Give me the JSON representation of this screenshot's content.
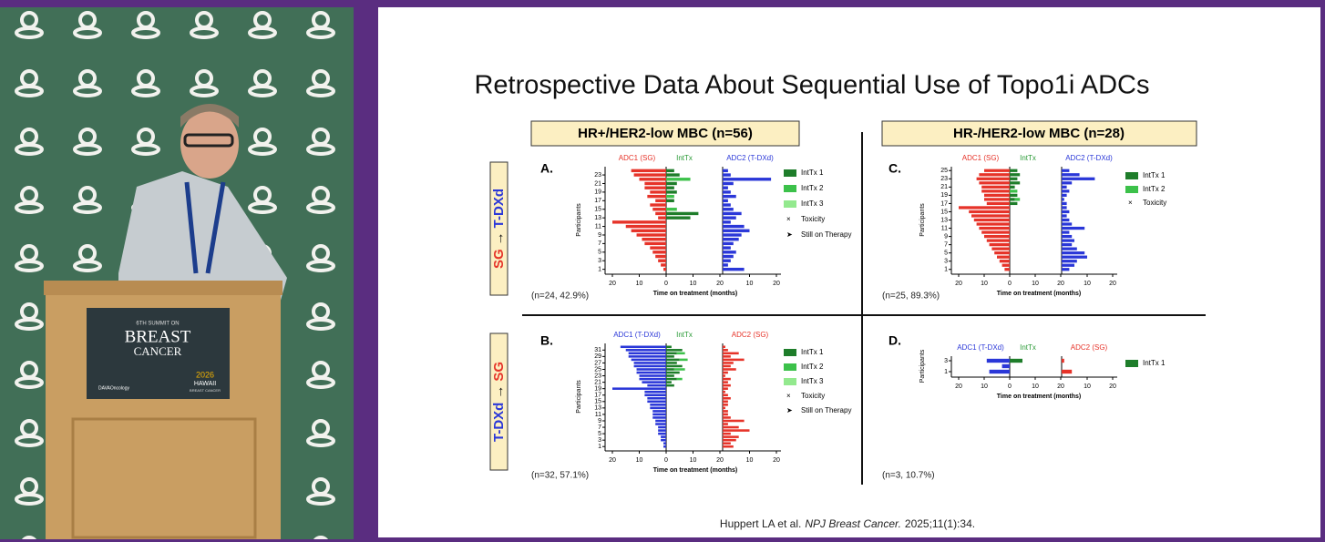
{
  "video": {
    "podium": {
      "summit": "6TH SUMMIT ON",
      "line1": "BREAST",
      "line2": "CANCER",
      "sponsor": "DAVAOncology",
      "year": "2026",
      "place": "HAWAII",
      "event": "BREAST CANCER"
    }
  },
  "slide": {
    "title": "Retrospective Data About Sequential Use of Topo1i ADCs",
    "groups": [
      {
        "header": "HR+/HER2-low MBC (n=56)"
      },
      {
        "header": "HR-/HER2-low MBC (n=28)"
      }
    ],
    "sequences": [
      {
        "from": "SG",
        "arrow": "→",
        "to": "T-DXd"
      },
      {
        "from": "T-DXd",
        "arrow": "→",
        "to": "SG"
      }
    ],
    "panels": [
      {
        "letter": "A.",
        "segment_labels": [
          "ADC1 (SG)",
          "IntTx",
          "ADC2 (T-DXd)"
        ],
        "adc1_color": "#e63329",
        "adc2_color": "#2a37d8",
        "y_label": "Participants",
        "x_label": "Time on treatment (months)",
        "n_label": "(n=24, 42.9%)",
        "xlim": [
          0,
          20
        ],
        "adc1_xticks": [
          20,
          10,
          0
        ],
        "inttx_xticks": [
          10,
          20
        ],
        "adc2_xticks": [
          10,
          20
        ],
        "yticks": [
          1,
          3,
          5,
          7,
          9,
          11,
          13,
          15,
          17,
          19,
          21,
          23
        ],
        "adc1": [
          1,
          2,
          3,
          4,
          5,
          6,
          8,
          9,
          11,
          13,
          15,
          20,
          3,
          4,
          5,
          6,
          4,
          7,
          6,
          8,
          8,
          10,
          12,
          13
        ],
        "inttx_1": [
          0,
          0,
          0,
          0,
          0,
          0,
          0,
          0,
          0,
          0,
          0,
          0,
          9,
          12,
          0,
          0,
          3,
          0,
          4,
          3,
          4,
          0,
          5,
          3
        ],
        "inttx_2": [
          0,
          0,
          0,
          0,
          0,
          0,
          0,
          0,
          0,
          0,
          0,
          0,
          0,
          0,
          4,
          0,
          0,
          3,
          0,
          0,
          0,
          9,
          0,
          0
        ],
        "adc2": [
          8,
          2,
          3,
          4,
          5,
          3,
          4,
          6,
          7,
          10,
          8,
          3,
          5,
          7,
          4,
          3,
          2,
          5,
          3,
          2,
          4,
          18,
          3,
          2
        ],
        "legend": [
          {
            "name": "IntTx 1",
            "color": "#1e7d2a"
          },
          {
            "name": "IntTx 2",
            "color": "#3cc14a"
          },
          {
            "name": "IntTx 3",
            "color": "#93e98e"
          },
          {
            "name": "Toxicity",
            "marker": "×"
          },
          {
            "name": "Still on Therapy",
            "marker": "➤"
          }
        ]
      },
      {
        "letter": "C.",
        "segment_labels": [
          "ADC1 (SG)",
          "IntTx",
          "ADC2 (T-DXd)"
        ],
        "adc1_color": "#e63329",
        "adc2_color": "#2a37d8",
        "y_label": "Participants",
        "x_label": "Time on treatment (months)",
        "n_label": "(n=25, 89.3%)",
        "xlim": [
          0,
          20
        ],
        "adc1_xticks": [
          20,
          10,
          0
        ],
        "inttx_xticks": [
          10,
          20
        ],
        "adc2_xticks": [
          10,
          20
        ],
        "yticks": [
          1,
          3,
          5,
          7,
          9,
          11,
          13,
          15,
          17,
          19,
          21,
          23,
          25
        ],
        "adc1": [
          2,
          3,
          4,
          5,
          6,
          7,
          8,
          9,
          10,
          11,
          12,
          13,
          14,
          15,
          16,
          20,
          9,
          10,
          10,
          11,
          11,
          12,
          13,
          12,
          10
        ],
        "inttx_1": [
          0,
          0,
          0,
          0,
          0,
          0,
          0,
          0,
          0,
          0,
          0,
          0,
          0,
          0,
          0,
          0,
          3,
          2,
          3,
          0,
          2,
          4,
          3,
          4,
          3
        ],
        "inttx_2": [
          0,
          0,
          0,
          0,
          0,
          0,
          0,
          0,
          0,
          0,
          0,
          0,
          0,
          0,
          0,
          0,
          0,
          2,
          0,
          3,
          0,
          0,
          0,
          0,
          0
        ],
        "adc2": [
          3,
          5,
          6,
          10,
          9,
          6,
          4,
          5,
          4,
          3,
          9,
          4,
          3,
          2,
          3,
          2,
          2,
          1,
          2,
          3,
          2,
          4,
          13,
          7,
          3
        ],
        "legend": [
          {
            "name": "IntTx 1",
            "color": "#1e7d2a"
          },
          {
            "name": "IntTx 2",
            "color": "#3cc14a"
          },
          {
            "name": "Toxicity",
            "marker": "×"
          }
        ]
      },
      {
        "letter": "B.",
        "segment_labels": [
          "ADC1 (T-DXd)",
          "IntTx",
          "ADC2 (SG)"
        ],
        "adc1_color": "#2a37d8",
        "adc2_color": "#e63329",
        "y_label": "Participants",
        "x_label": "Time on treatment (months)",
        "n_label": "(n=32, 57.1%)",
        "xlim": [
          0,
          20
        ],
        "adc1_xticks": [
          20,
          10,
          0
        ],
        "inttx_xticks": [
          10,
          20
        ],
        "adc2_xticks": [
          10,
          20
        ],
        "yticks": [
          1,
          3,
          5,
          7,
          9,
          11,
          13,
          15,
          17,
          19,
          21,
          23,
          25,
          27,
          29,
          31
        ],
        "adc1": [
          1,
          1,
          2,
          2,
          3,
          3,
          3,
          4,
          4,
          5,
          5,
          5,
          6,
          6,
          7,
          7,
          8,
          8,
          20,
          7,
          9,
          10,
          10,
          11,
          11,
          12,
          12,
          13,
          14,
          14,
          15,
          17
        ],
        "inttx_1": [
          0,
          0,
          0,
          0,
          0,
          0,
          0,
          0,
          0,
          0,
          0,
          0,
          0,
          0,
          0,
          0,
          0,
          0,
          0,
          3,
          2,
          4,
          3,
          5,
          3,
          6,
          4,
          5,
          3,
          4,
          6,
          2
        ],
        "inttx_2": [
          0,
          0,
          0,
          0,
          0,
          0,
          0,
          0,
          0,
          0,
          0,
          0,
          0,
          0,
          0,
          0,
          0,
          0,
          0,
          0,
          0,
          2,
          0,
          0,
          4,
          0,
          0,
          3,
          0,
          3,
          0,
          0
        ],
        "adc2": [
          4,
          3,
          5,
          6,
          3,
          10,
          6,
          2,
          8,
          3,
          2,
          2,
          1,
          2,
          2,
          3,
          2,
          1,
          2,
          3,
          2,
          3,
          1,
          2,
          5,
          3,
          4,
          8,
          3,
          6,
          2,
          1
        ],
        "legend": [
          {
            "name": "IntTx 1",
            "color": "#1e7d2a"
          },
          {
            "name": "IntTx 2",
            "color": "#3cc14a"
          },
          {
            "name": "IntTx 3",
            "color": "#93e98e"
          },
          {
            "name": "Toxicity",
            "marker": "×"
          },
          {
            "name": "Still on Therapy",
            "marker": "➤"
          }
        ]
      },
      {
        "letter": "D.",
        "segment_labels": [
          "ADC1 (T-DXd)",
          "IntTx",
          "ADC2 (SG)"
        ],
        "adc1_color": "#2a37d8",
        "adc2_color": "#e63329",
        "y_label": "Participants",
        "x_label": "Time on treatment (months)",
        "n_label": "(n=3, 10.7%)",
        "xlim": [
          0,
          20
        ],
        "adc1_xticks": [
          20,
          10,
          0
        ],
        "inttx_xticks": [
          10,
          20
        ],
        "adc2_xticks": [
          10,
          20
        ],
        "yticks": [
          1,
          3
        ],
        "adc1": [
          8,
          3,
          9
        ],
        "inttx_1": [
          0,
          0,
          5
        ],
        "inttx_2": [
          0,
          0,
          0
        ],
        "adc2": [
          4,
          0,
          1
        ],
        "legend": [
          {
            "name": "IntTx 1",
            "color": "#1e7d2a"
          }
        ]
      }
    ],
    "reference": {
      "authors": "Huppert LA et al.",
      "journal": "NPJ Breast Cancer.",
      "citation": "2025;11(1):34."
    }
  }
}
